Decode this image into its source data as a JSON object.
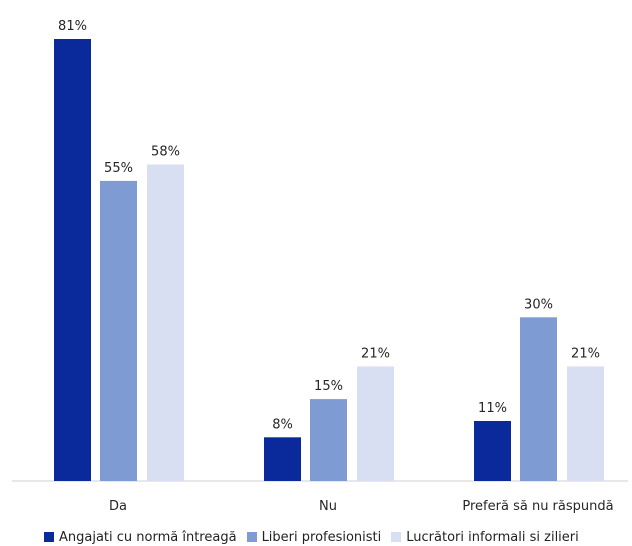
{
  "chart_data": {
    "type": "bar",
    "categories": [
      "Da",
      "Nu",
      "Preferă să nu răspundă"
    ],
    "series": [
      {
        "name": "Angajati cu normă întreagă",
        "color": "#0a2a9b",
        "values": [
          81,
          8,
          11
        ],
        "labels": [
          "81%",
          "8%",
          "11%"
        ]
      },
      {
        "name": "Liberi profesionisti",
        "color": "#7f9bd3",
        "values": [
          55,
          15,
          30
        ],
        "labels": [
          "55%",
          "15%",
          "30%"
        ]
      },
      {
        "name": "Lucrători informali si zilieri",
        "color": "#d9dff2",
        "values": [
          58,
          21,
          21
        ],
        "labels": [
          "58%",
          "21%",
          "21%"
        ]
      }
    ],
    "ylim": [
      0,
      100
    ],
    "grid": false,
    "legend_position": "bottom"
  }
}
